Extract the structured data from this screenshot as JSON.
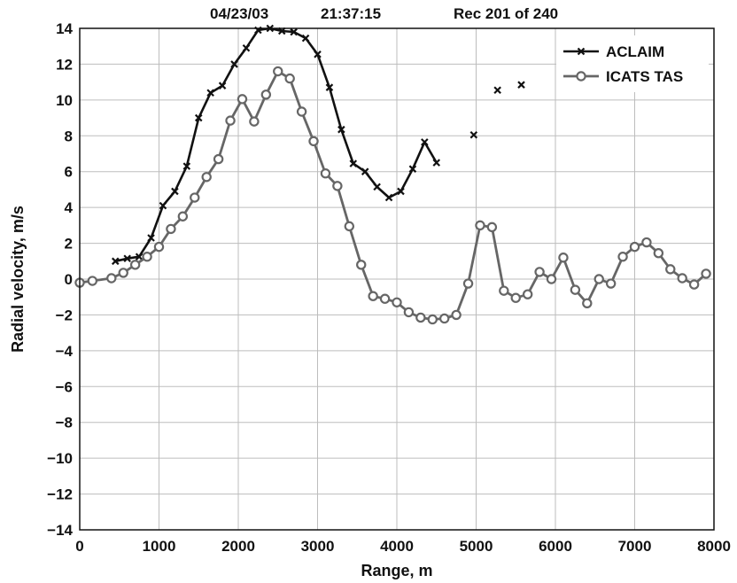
{
  "header": {
    "date": "04/23/03",
    "time": "21:37:15",
    "record": "Rec 201 of 240"
  },
  "chart_data": {
    "type": "line",
    "title": "",
    "xlabel": "Range, m",
    "ylabel": "Radial velocity, m/s",
    "xlim": [
      0,
      8000
    ],
    "ylim": [
      -14,
      14
    ],
    "xticks": [
      0,
      1000,
      2000,
      3000,
      4000,
      5000,
      6000,
      7000,
      8000
    ],
    "yticks": [
      -14,
      -12,
      -10,
      -8,
      -6,
      -4,
      -2,
      0,
      2,
      4,
      6,
      8,
      10,
      12,
      14
    ],
    "ytick_labels": [
      "−14",
      "−12",
      "−10",
      "−8",
      "−6",
      "−4",
      "−2",
      "0",
      "2",
      "4",
      "6",
      "8",
      "10",
      "12",
      "14"
    ],
    "grid": true,
    "legend_position": "top-right",
    "series": [
      {
        "name": "ACLAIM",
        "color": "#111111",
        "marker": "x",
        "segments": [
          [
            [
              450,
              1.0
            ],
            [
              600,
              1.15
            ],
            [
              750,
              1.25
            ],
            [
              900,
              2.3
            ],
            [
              1050,
              4.1
            ],
            [
              1200,
              4.9
            ],
            [
              1350,
              6.3
            ],
            [
              1500,
              9.0
            ],
            [
              1650,
              10.4
            ],
            [
              1800,
              10.8
            ],
            [
              1950,
              12.0
            ],
            [
              2100,
              12.9
            ],
            [
              2250,
              13.9
            ],
            [
              2400,
              14.0
            ],
            [
              2550,
              13.85
            ],
            [
              2700,
              13.8
            ],
            [
              2850,
              13.45
            ],
            [
              3000,
              12.55
            ],
            [
              3150,
              10.7
            ],
            [
              3300,
              8.35
            ],
            [
              3450,
              6.45
            ],
            [
              3600,
              6.0
            ],
            [
              3750,
              5.15
            ],
            [
              3900,
              4.55
            ],
            [
              4050,
              4.9
            ],
            [
              4200,
              6.15
            ],
            [
              4350,
              7.65
            ],
            [
              4500,
              6.5
            ]
          ],
          [
            [
              4970,
              8.05
            ]
          ],
          [
            [
              5270,
              10.55
            ]
          ],
          [
            [
              5570,
              10.85
            ]
          ]
        ]
      },
      {
        "name": "ICATS TAS",
        "color": "#666666",
        "marker": "o",
        "segments": [
          [
            [
              0,
              -0.2
            ],
            [
              160,
              -0.1
            ],
            [
              400,
              0.05
            ],
            [
              550,
              0.35
            ],
            [
              700,
              0.8
            ],
            [
              850,
              1.25
            ],
            [
              1000,
              1.8
            ],
            [
              1150,
              2.8
            ],
            [
              1300,
              3.5
            ],
            [
              1450,
              4.55
            ],
            [
              1600,
              5.7
            ],
            [
              1750,
              6.7
            ],
            [
              1900,
              8.85
            ],
            [
              2050,
              10.05
            ],
            [
              2200,
              8.8
            ],
            [
              2350,
              10.3
            ],
            [
              2500,
              11.6
            ],
            [
              2650,
              11.2
            ],
            [
              2800,
              9.35
            ],
            [
              2950,
              7.7
            ],
            [
              3100,
              5.9
            ],
            [
              3250,
              5.2
            ],
            [
              3400,
              2.95
            ],
            [
              3550,
              0.8
            ],
            [
              3700,
              -0.95
            ],
            [
              3850,
              -1.1
            ],
            [
              4000,
              -1.3
            ],
            [
              4150,
              -1.85
            ],
            [
              4300,
              -2.15
            ],
            [
              4450,
              -2.25
            ],
            [
              4600,
              -2.2
            ],
            [
              4750,
              -2.0
            ],
            [
              4900,
              -0.25
            ],
            [
              5050,
              3.0
            ],
            [
              5200,
              2.9
            ],
            [
              5350,
              -0.65
            ],
            [
              5500,
              -1.05
            ],
            [
              5650,
              -0.85
            ],
            [
              5800,
              0.4
            ],
            [
              5950,
              0.0
            ],
            [
              6100,
              1.2
            ],
            [
              6250,
              -0.6
            ],
            [
              6400,
              -1.35
            ],
            [
              6550,
              0.0
            ],
            [
              6700,
              -0.25
            ],
            [
              6850,
              1.25
            ],
            [
              7000,
              1.8
            ],
            [
              7150,
              2.05
            ],
            [
              7300,
              1.45
            ],
            [
              7450,
              0.55
            ],
            [
              7600,
              0.05
            ],
            [
              7750,
              -0.3
            ],
            [
              7900,
              0.3
            ]
          ]
        ]
      }
    ]
  }
}
